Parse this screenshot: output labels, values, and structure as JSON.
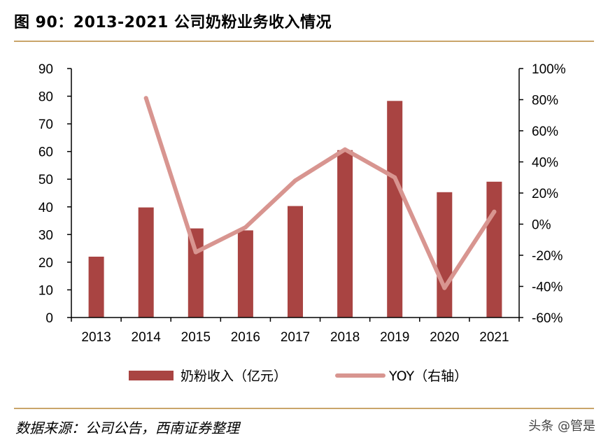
{
  "figure_title": "图 90：2013-2021 公司奶粉业务收入情况",
  "source_note": "数据来源：公司公告，西南证券整理",
  "watermark": "头条 @管是",
  "chart_data": {
    "type": "bar+line",
    "title": "图 90：2013-2021 公司奶粉业务收入情况",
    "categories": [
      "2013",
      "2014",
      "2015",
      "2016",
      "2017",
      "2018",
      "2019",
      "2020",
      "2021"
    ],
    "series": [
      {
        "name": "奶粉收入（亿元）",
        "type": "bar",
        "axis": "left",
        "color": "#a94442",
        "values": [
          22,
          39.8,
          32.2,
          31.5,
          40.3,
          60.5,
          78.3,
          45.3,
          49.1
        ]
      },
      {
        "name": "YOY（右轴）",
        "type": "line",
        "axis": "right",
        "color": "#d89590",
        "values": [
          null,
          81,
          -18,
          -2,
          28,
          48,
          30,
          -41,
          8
        ]
      }
    ],
    "left_axis": {
      "min": 0,
      "max": 90,
      "step": 10,
      "ticks": [
        "0",
        "10",
        "20",
        "30",
        "40",
        "50",
        "60",
        "70",
        "80",
        "90"
      ]
    },
    "right_axis": {
      "min": -60,
      "max": 100,
      "step": 20,
      "ticks": [
        "-60%",
        "-40%",
        "-20%",
        "0%",
        "20%",
        "40%",
        "60%",
        "80%",
        "100%"
      ]
    },
    "legend": {
      "position": "bottom-center",
      "items": [
        "奶粉收入（亿元）",
        "YOY（右轴）"
      ]
    }
  }
}
